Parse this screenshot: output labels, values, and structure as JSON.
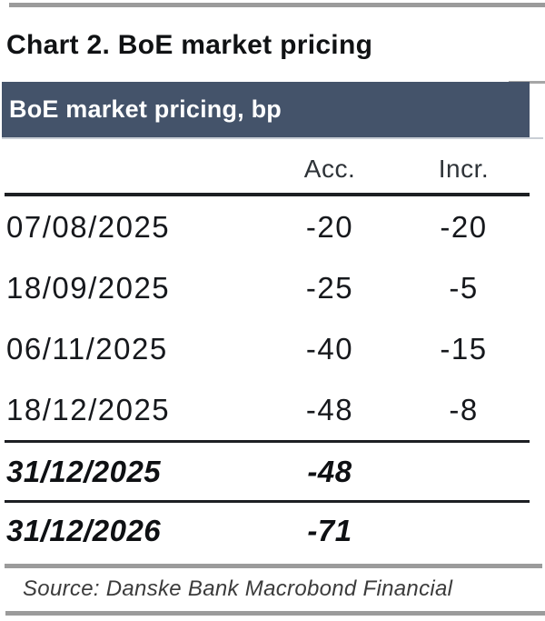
{
  "title": "Chart 2. BoE market pricing",
  "table": {
    "header_bar": "BoE market pricing, bp",
    "columns": {
      "date": "",
      "acc": "Acc.",
      "incr": "Incr."
    },
    "rows": [
      {
        "date": "07/08/2025",
        "acc": "-20",
        "incr": "-20"
      },
      {
        "date": "18/09/2025",
        "acc": "-25",
        "incr": "-5"
      },
      {
        "date": "06/11/2025",
        "acc": "-40",
        "incr": "-15"
      },
      {
        "date": "18/12/2025",
        "acc": "-48",
        "incr": "-8"
      }
    ],
    "summary_rows": [
      {
        "date": "31/12/2025",
        "acc": "-48",
        "incr": ""
      },
      {
        "date": "31/12/2026",
        "acc": "-71",
        "incr": ""
      }
    ]
  },
  "source": "Source: Danske Bank Macrobond Financial",
  "colors": {
    "header_bar_bg": "#44536a",
    "header_bar_text": "#ffffff",
    "rule_black": "#1d1f23",
    "rule_gray": "#9b9b9b",
    "body_text": "#16181c"
  },
  "chart_data": {
    "type": "table",
    "title": "BoE market pricing, bp",
    "columns": [
      "",
      "Acc.",
      "Incr."
    ],
    "rows": [
      [
        "07/08/2025",
        -20,
        -20
      ],
      [
        "18/09/2025",
        -25,
        -5
      ],
      [
        "06/11/2025",
        -40,
        -15
      ],
      [
        "18/12/2025",
        -48,
        -8
      ],
      [
        "31/12/2025",
        -48,
        null
      ],
      [
        "31/12/2026",
        -71,
        null
      ]
    ],
    "notes": "Rows for 31/12/2025 and 31/12/2026 are bold italic summary rows with no Incr. value; Acc. = accumulated bp, Incr. = incremental bp priced for BoE meetings"
  }
}
